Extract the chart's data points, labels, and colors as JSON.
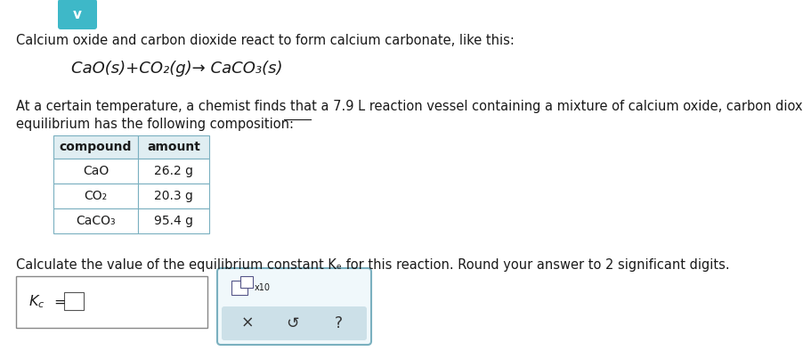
{
  "title_text": "Calcium oxide and carbon dioxide react to form calcium carbonate, like this:",
  "reaction_equation": "CaO(s)+CO₂(g)→ CaCO₃(s)",
  "para_line1": "At a certain temperature, a chemist finds that a 7.9 L reaction vessel containing a mixture of calcium oxide, carbon dioxide, and calcium carbonate at",
  "para_line2": "equilibrium has the following composition:",
  "table_headers": [
    "compound",
    "amount"
  ],
  "table_rows": [
    [
      "CaO",
      "26.2 g"
    ],
    [
      "CO₂",
      "20.3 g"
    ],
    [
      "CaCO₃",
      "95.4 g"
    ]
  ],
  "question_text": "Calculate the value of the equilibrium constant Kₑ for this reaction. Round your answer to 2 significant digits.",
  "background_color": "#ffffff",
  "text_color": "#1a1a1a",
  "table_header_bg": "#e0eef2",
  "table_border_color": "#7ab0c0",
  "answer_box_border": "#888888",
  "tool_box_border": "#7ab0bf",
  "tool_box_bg": "#f0f8fb",
  "tool_bar_bg": "#cce0e8",
  "chevron_bg": "#3eb8c8",
  "font_size": 10.5,
  "font_size_reaction": 13,
  "font_size_table": 10,
  "button_symbols": [
    "×",
    "↺",
    "?"
  ]
}
